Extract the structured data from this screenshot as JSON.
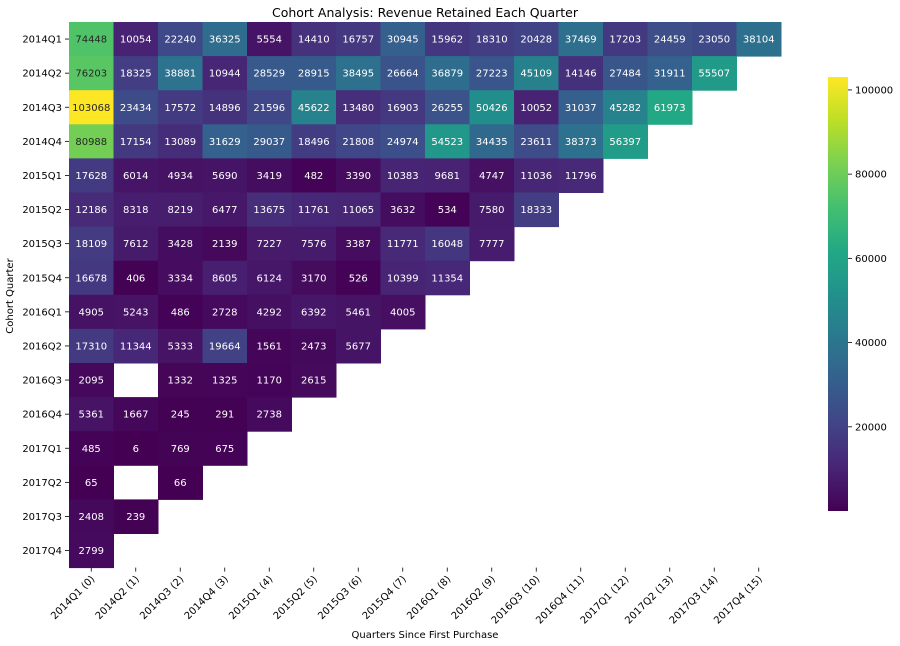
{
  "chart_data": {
    "type": "heatmap",
    "title": "Cohort Analysis: Revenue Retained Each Quarter",
    "xlabel": "Quarters Since First Purchase",
    "ylabel": "Cohort Quarter",
    "x_categories": [
      "2014Q1 (0)",
      "2014Q2 (1)",
      "2014Q3 (2)",
      "2014Q4 (3)",
      "2015Q1 (4)",
      "2015Q2 (5)",
      "2015Q3 (6)",
      "2015Q4 (7)",
      "2016Q1 (8)",
      "2016Q2 (9)",
      "2016Q3 (10)",
      "2016Q4 (11)",
      "2017Q1 (12)",
      "2017Q2 (13)",
      "2017Q3 (14)",
      "2017Q4 (15)"
    ],
    "y_categories": [
      "2014Q1",
      "2014Q2",
      "2014Q3",
      "2014Q4",
      "2015Q1",
      "2015Q2",
      "2015Q3",
      "2015Q4",
      "2016Q1",
      "2016Q2",
      "2016Q3",
      "2016Q4",
      "2017Q1",
      "2017Q2",
      "2017Q3",
      "2017Q4"
    ],
    "values": [
      [
        74448,
        10054,
        22240,
        36325,
        5554,
        14410,
        16757,
        30945,
        15962,
        18310,
        20428,
        37469,
        17203,
        24459,
        23050,
        38104
      ],
      [
        76203,
        18325,
        38881,
        10944,
        28529,
        28915,
        38495,
        26664,
        36879,
        27223,
        45109,
        14146,
        27484,
        31911,
        55507
      ],
      [
        103068,
        23434,
        17572,
        14896,
        21596,
        45622,
        13480,
        16903,
        26255,
        50426,
        10052,
        31037,
        45282,
        61973
      ],
      [
        80988,
        17154,
        13089,
        31629,
        29037,
        18496,
        21808,
        24974,
        54523,
        34435,
        23611,
        38373,
        56397
      ],
      [
        17628,
        6014,
        4934,
        5690,
        3419,
        482,
        3390,
        10383,
        9681,
        4747,
        11036,
        11796
      ],
      [
        12186,
        8318,
        8219,
        6477,
        13675,
        11761,
        11065,
        3632,
        534,
        7580,
        18333
      ],
      [
        18109,
        7612,
        3428,
        2139,
        7227,
        7576,
        3387,
        11771,
        16048,
        7777
      ],
      [
        16678,
        406,
        3334,
        8605,
        6124,
        3170,
        526,
        10399,
        11354
      ],
      [
        4905,
        5243,
        486,
        2728,
        4292,
        6392,
        5461,
        4005
      ],
      [
        17310,
        11344,
        5333,
        19664,
        1561,
        2473,
        5677
      ],
      [
        2095,
        null,
        1332,
        1325,
        1170,
        2615
      ],
      [
        5361,
        1667,
        245,
        291,
        2738
      ],
      [
        485,
        6,
        769,
        675
      ],
      [
        65,
        null,
        66
      ],
      [
        2408,
        239
      ],
      [
        2799
      ]
    ],
    "colormap": "viridis",
    "color_min": 6,
    "color_max": 103068,
    "colorbar_ticks": [
      20000,
      40000,
      60000,
      80000,
      100000
    ],
    "grid": false
  }
}
